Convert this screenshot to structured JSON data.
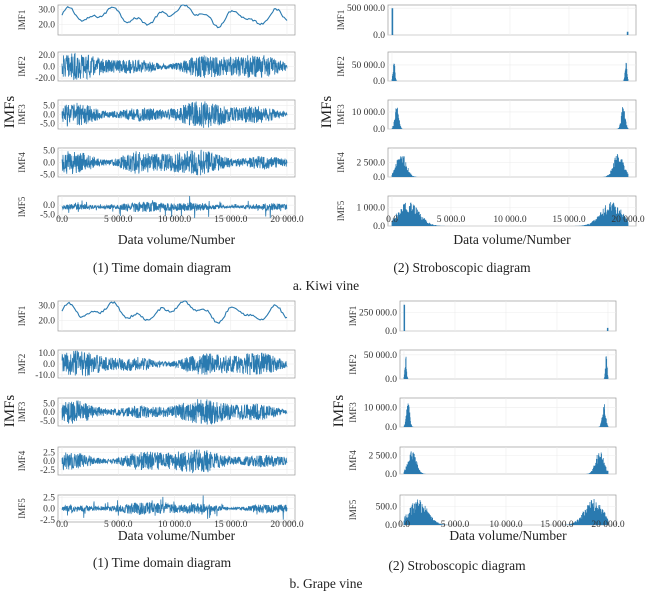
{
  "signal_color": "#2a7ab0",
  "xlabel": "Data volume/Number",
  "ylabel": "IMFs",
  "x_ticks": [
    "0.0",
    "5 000.0",
    "10 000.0",
    "15 000.0",
    "20 000.0"
  ],
  "x_range": [
    0,
    20000
  ],
  "figures": [
    {
      "caption": "a. Kiwi vine",
      "time_caption": "(1) Time domain diagram",
      "freq_caption": "(2) Stroboscopic diagram",
      "time_panels": [
        {
          "name": "IMF1",
          "ticks": [
            "20.0",
            "30.0"
          ],
          "ylim": [
            13,
            33
          ]
        },
        {
          "name": "IMF2",
          "ticks": [
            "20.0",
            "0.0",
            "-20.0"
          ],
          "ylim": [
            -25,
            25
          ]
        },
        {
          "name": "IMF3",
          "ticks": [
            "5.0",
            "0.0",
            "-5.0"
          ],
          "ylim": [
            -8,
            8
          ]
        },
        {
          "name": "IMF4",
          "ticks": [
            "5.0",
            "0.0",
            "-5.0"
          ],
          "ylim": [
            -6,
            6
          ]
        },
        {
          "name": "IMF5",
          "ticks": [
            "0.0",
            "-5.0"
          ],
          "ylim": [
            -7,
            5
          ]
        }
      ],
      "freq_panels": [
        {
          "name": "IMF1",
          "ticks": [
            "500 000.0",
            "0.0"
          ],
          "ylim": [
            0,
            560000
          ]
        },
        {
          "name": "IMF2",
          "ticks": [
            "50 000.0",
            "0.0"
          ],
          "ylim": [
            0,
            90000
          ]
        },
        {
          "name": "IMF3",
          "ticks": [
            "10 000.0",
            "0.0"
          ],
          "ylim": [
            0,
            17000
          ]
        },
        {
          "name": "IMF4",
          "ticks": [
            "2 500.0",
            "0.0"
          ],
          "ylim": [
            0,
            5000
          ]
        },
        {
          "name": "IMF5",
          "ticks": [
            "1 000.0",
            "0.0"
          ],
          "ylim": [
            0,
            1600
          ]
        }
      ]
    },
    {
      "caption": "b. Grape vine",
      "time_caption": "(1) Time domain diagram",
      "freq_caption": "(2) Stroboscopic diagram",
      "time_panels": [
        {
          "name": "IMF1",
          "ticks": [
            "30.0",
            "20.0"
          ],
          "ylim": [
            13,
            33
          ]
        },
        {
          "name": "IMF2",
          "ticks": [
            "10.0",
            "0.0",
            "-10.0"
          ],
          "ylim": [
            -13,
            13
          ]
        },
        {
          "name": "IMF3",
          "ticks": [
            "5.0",
            "0.0",
            "-5.0"
          ],
          "ylim": [
            -8,
            8
          ]
        },
        {
          "name": "IMF4",
          "ticks": [
            "2.5",
            "0.0",
            "-2.5"
          ],
          "ylim": [
            -4,
            4
          ]
        },
        {
          "name": "IMF5",
          "ticks": [
            "2.5",
            "0.0",
            "-2.5"
          ],
          "ylim": [
            -3,
            3
          ]
        }
      ],
      "freq_panels": [
        {
          "name": "IMF1",
          "ticks": [
            "250 000.0",
            "0.0"
          ],
          "ylim": [
            0,
            400000
          ]
        },
        {
          "name": "IMF2",
          "ticks": [
            "50 000.0",
            "0.0"
          ],
          "ylim": [
            0,
            60000
          ]
        },
        {
          "name": "IMF3",
          "ticks": [
            "10 000.0",
            "0.0"
          ],
          "ylim": [
            0,
            15000
          ]
        },
        {
          "name": "IMF4",
          "ticks": [
            "2 500.0",
            "0.0"
          ],
          "ylim": [
            0,
            3600
          ]
        },
        {
          "name": "IMF5",
          "ticks": [
            "500.0",
            "0.0"
          ],
          "ylim": [
            0,
            800
          ]
        }
      ]
    }
  ],
  "chart_data": {
    "type": "line",
    "description_kind": "EMD decomposition panels (IMF1–IMF5), time domain and spectrum",
    "xlabel": "Data volume/Number",
    "ylabel": "IMFs",
    "xlim": [
      0,
      20000
    ],
    "x_ticks": [
      0,
      5000,
      10000,
      15000,
      20000
    ],
    "grid": true,
    "charts": [
      {
        "caption": "a. Kiwi vine",
        "time_domain": [
          {
            "name": "IMF1",
            "ylim": [
              13,
              33
            ],
            "ticks": [
              20,
              30
            ]
          },
          {
            "name": "IMF2",
            "ylim": [
              -25,
              25
            ],
            "ticks": [
              20,
              0,
              -20
            ]
          },
          {
            "name": "IMF3",
            "ylim": [
              -8,
              8
            ],
            "ticks": [
              5,
              0,
              -5
            ]
          },
          {
            "name": "IMF4",
            "ylim": [
              -6,
              6
            ],
            "ticks": [
              5,
              0,
              -5
            ]
          },
          {
            "name": "IMF5",
            "ylim": [
              -7,
              5
            ],
            "ticks": [
              0,
              -5
            ]
          }
        ],
        "spectrum": [
          {
            "name": "IMF1",
            "peak": 500000,
            "ticks": [
              500000,
              0
            ]
          },
          {
            "name": "IMF2",
            "peak": 80000,
            "ticks": [
              50000,
              0
            ]
          },
          {
            "name": "IMF3",
            "peak": 15000,
            "ticks": [
              10000,
              0
            ]
          },
          {
            "name": "IMF4",
            "peak": 4500,
            "ticks": [
              2500,
              0
            ]
          },
          {
            "name": "IMF5",
            "peak": 1300,
            "ticks": [
              1000,
              0
            ]
          }
        ]
      },
      {
        "caption": "b. Grape vine",
        "time_domain": [
          {
            "name": "IMF1",
            "ylim": [
              13,
              33
            ],
            "ticks": [
              30,
              20
            ]
          },
          {
            "name": "IMF2",
            "ylim": [
              -13,
              13
            ],
            "ticks": [
              10,
              0,
              -10
            ]
          },
          {
            "name": "IMF3",
            "ylim": [
              -8,
              8
            ],
            "ticks": [
              5,
              0,
              -5
            ]
          },
          {
            "name": "IMF4",
            "ylim": [
              -4,
              4
            ],
            "ticks": [
              2.5,
              0,
              -2.5
            ]
          },
          {
            "name": "IMF5",
            "ylim": [
              -3,
              3
            ],
            "ticks": [
              2.5,
              0,
              -2.5
            ]
          }
        ],
        "spectrum": [
          {
            "name": "IMF1",
            "peak": 350000,
            "ticks": [
              250000,
              0
            ]
          },
          {
            "name": "IMF2",
            "peak": 55000,
            "ticks": [
              50000,
              0
            ]
          },
          {
            "name": "IMF3",
            "peak": 13000,
            "ticks": [
              10000,
              0
            ]
          },
          {
            "name": "IMF4",
            "peak": 3200,
            "ticks": [
              2500,
              0
            ]
          },
          {
            "name": "IMF5",
            "peak": 700,
            "ticks": [
              500,
              0
            ]
          }
        ]
      }
    ]
  }
}
